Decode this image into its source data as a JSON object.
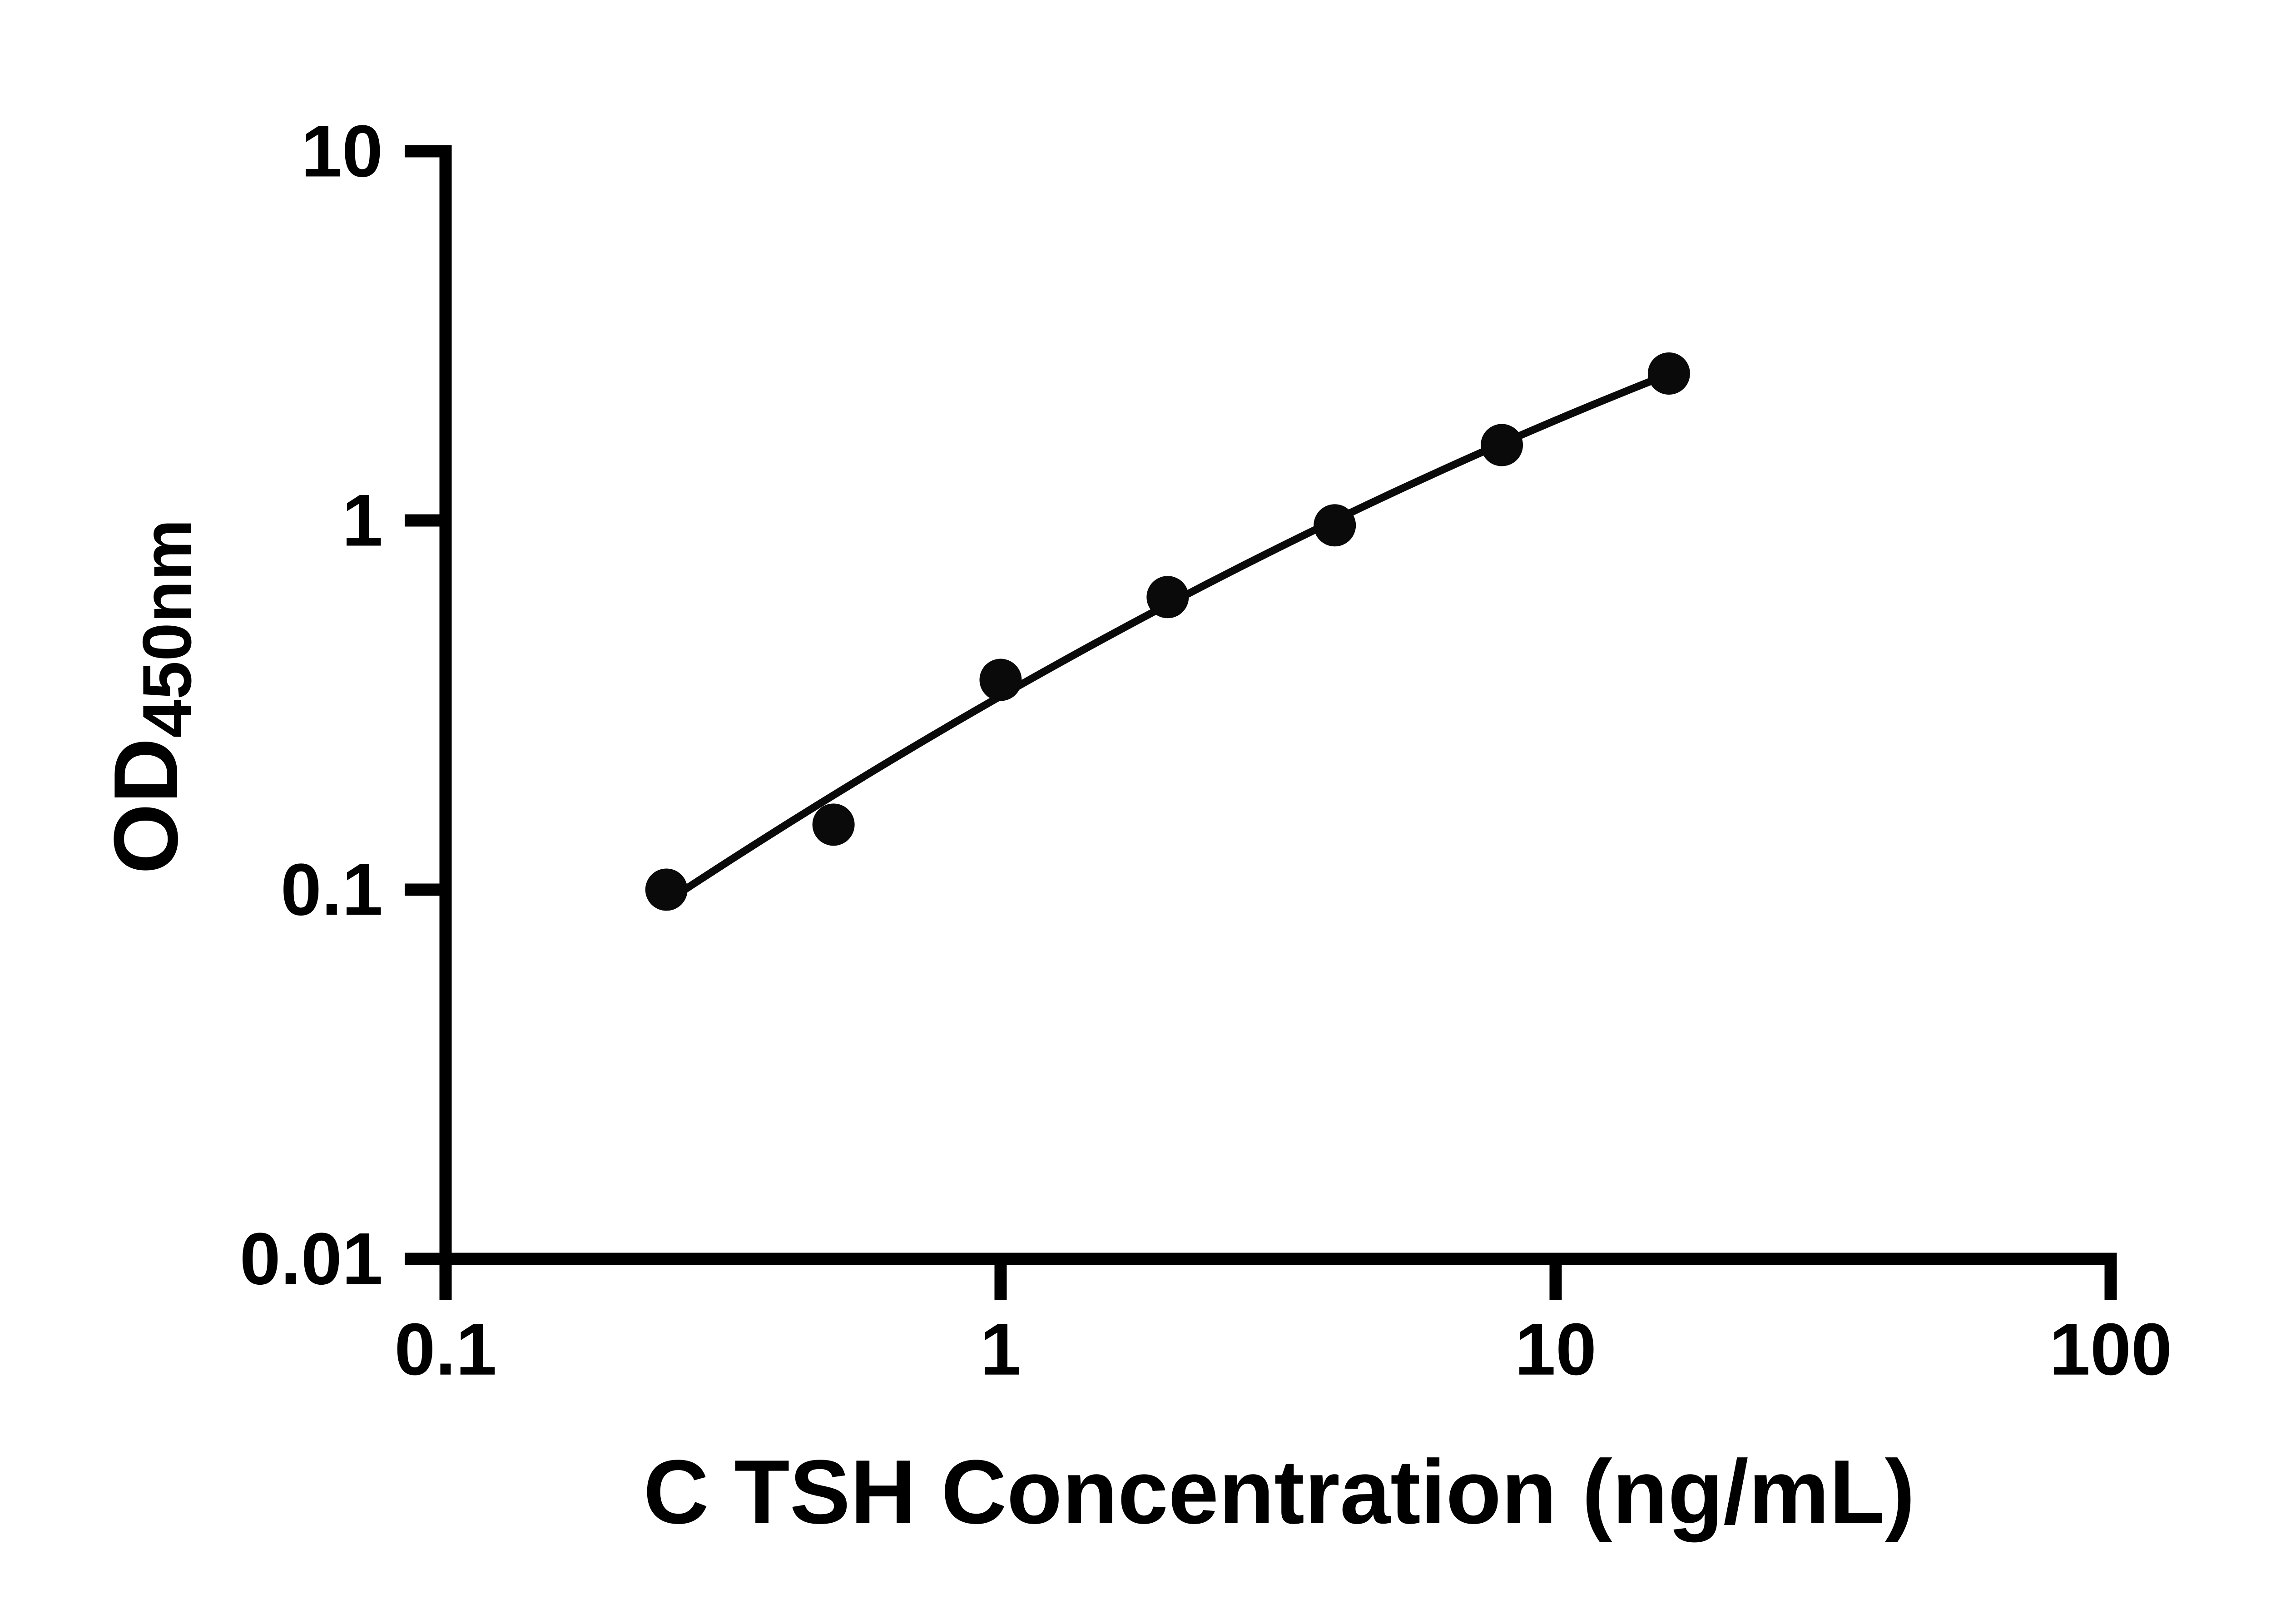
{
  "chart": {
    "x_axis_title": "C TSH Concentration (ng/mL)",
    "y_axis_title_main": "OD",
    "y_axis_title_sub": "450nm"
  },
  "chart_data": {
    "type": "scatter",
    "x": [
      0.25,
      0.5,
      1,
      2,
      4,
      8,
      16
    ],
    "y": [
      0.1,
      0.15,
      0.37,
      0.62,
      0.97,
      1.6,
      2.5
    ],
    "x_scale": "log",
    "y_scale": "log",
    "xlim": [
      0.1,
      100
    ],
    "ylim": [
      0.01,
      10
    ],
    "x_ticks": [
      0.1,
      1,
      10,
      100
    ],
    "x_tick_labels": [
      "0.1",
      "1",
      "10",
      "100"
    ],
    "y_ticks": [
      0.01,
      0.1,
      1,
      10
    ],
    "y_tick_labels": [
      "0.01",
      "0.1",
      "1",
      "10"
    ],
    "xlabel": "C TSH Concentration (ng/mL)",
    "ylabel": "OD450nm",
    "grid": false,
    "legend": null,
    "trend": "smooth fitted curve through points",
    "marker_color": "#0a0a0a",
    "line_color": "#0a0a0a",
    "axis_color": "#000000",
    "background_color": "#ffffff"
  }
}
